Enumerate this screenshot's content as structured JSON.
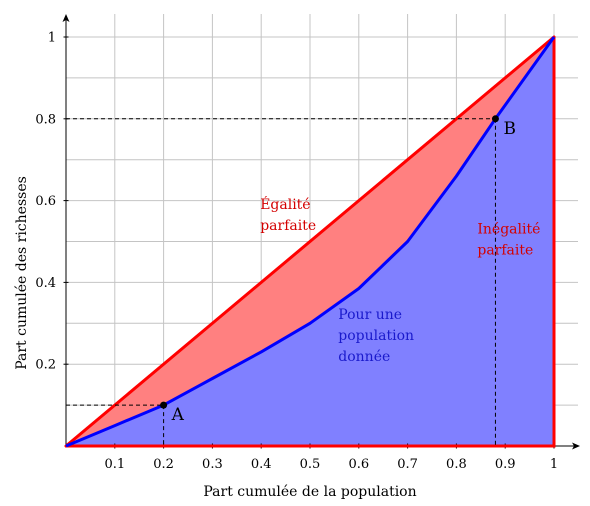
{
  "chart_data": {
    "type": "area",
    "xlabel": "Part cumulée de la population",
    "ylabel": "Part cumulée des richesses",
    "xlim": [
      0,
      1
    ],
    "ylim": [
      0,
      1
    ],
    "x_ticks": [
      "0.1",
      "0.2",
      "0.3",
      "0.4",
      "0.5",
      "0.6",
      "0.7",
      "0.8",
      "0.9",
      "1"
    ],
    "y_ticks": [
      "0.2",
      "0.4",
      "0.6",
      "0.8",
      "1"
    ],
    "grid": true,
    "series": [
      {
        "name": "Égalité parfaite",
        "color": "#ff0000",
        "x": [
          0,
          1
        ],
        "y": [
          0,
          1
        ]
      },
      {
        "name": "Pour une population donnée",
        "color": "#0000ff",
        "x": [
          0,
          0.1,
          0.2,
          0.3,
          0.4,
          0.5,
          0.6,
          0.7,
          0.8,
          0.88,
          1
        ],
        "y": [
          0,
          0.05,
          0.1,
          0.165,
          0.23,
          0.3,
          0.385,
          0.5,
          0.66,
          0.8,
          1
        ]
      },
      {
        "name": "Inégalité parfaite",
        "color": "#ff0000",
        "x": [
          0,
          1,
          1
        ],
        "y": [
          0,
          0,
          1
        ]
      }
    ],
    "points": [
      {
        "label": "A",
        "x": 0.2,
        "y": 0.1
      },
      {
        "label": "B",
        "x": 0.88,
        "y": 0.8
      }
    ],
    "annotations": [
      {
        "lines": [
          "Égalité",
          "parfaite"
        ],
        "color": "#d40000"
      },
      {
        "lines": [
          "Pour une",
          "population",
          "donnée"
        ],
        "color": "#1a1acc"
      },
      {
        "lines": [
          "Inégalité",
          "parfaite"
        ],
        "color": "#d40000"
      }
    ],
    "fill_colors": {
      "between": "#ff8080",
      "under": "#8080ff"
    }
  }
}
